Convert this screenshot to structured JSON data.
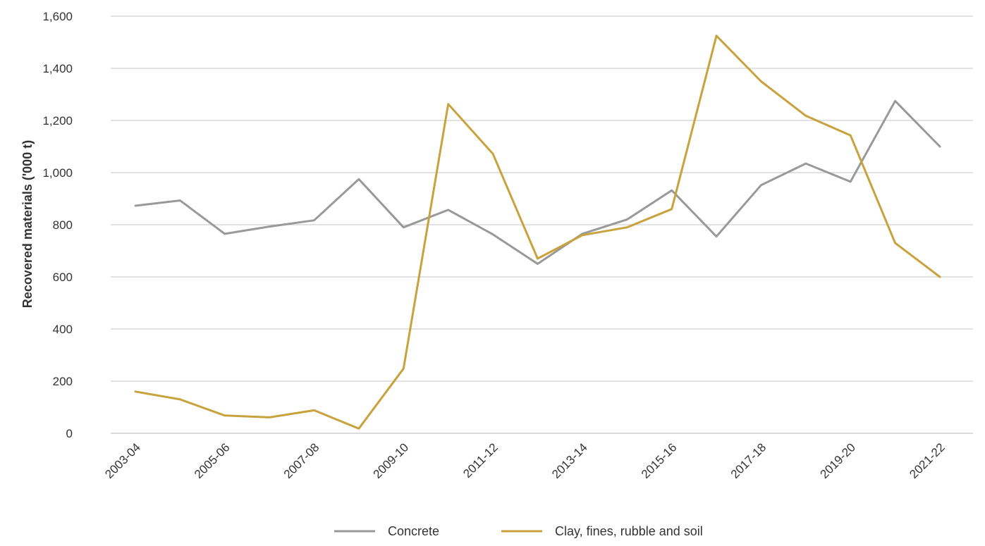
{
  "chart_data": {
    "type": "line",
    "title": "",
    "xlabel": "",
    "ylabel": "Recovered materials ('000 t)",
    "ylim": [
      0,
      1600
    ],
    "yticks": [
      0,
      200,
      400,
      600,
      800,
      1000,
      1200,
      1400,
      1600
    ],
    "ytick_labels": [
      "0",
      "200",
      "400",
      "600",
      "800",
      "1,000",
      "1,200",
      "1,400",
      "1,600"
    ],
    "categories": [
      "2003-04",
      "2004-05",
      "2005-06",
      "2006-07",
      "2007-08",
      "2008-09",
      "2009-10",
      "2010-11",
      "2011-12",
      "2012-13",
      "2013-14",
      "2014-15",
      "2015-16",
      "2016-17",
      "2017-18",
      "2018-19",
      "2019-20",
      "2020-21",
      "2021-22"
    ],
    "xtick_labels": [
      "2003-04",
      "",
      "2005-06",
      "",
      "2007-08",
      "",
      "2009-10",
      "",
      "2011-12",
      "",
      "2013-14",
      "",
      "2015-16",
      "",
      "2017-18",
      "",
      "2019-20",
      "",
      "2021-22"
    ],
    "grid": "horizontal",
    "legend_position": "bottom",
    "series": [
      {
        "name": "Concrete",
        "color": "#999999",
        "values": [
          873,
          893,
          765,
          793,
          817,
          975,
          790,
          857,
          763,
          650,
          765,
          820,
          932,
          755,
          952,
          1035,
          965,
          1275,
          1100
        ]
      },
      {
        "name": "Clay, fines, rubble and soil",
        "color": "#C8A23C",
        "values": [
          160,
          130,
          68,
          61,
          88,
          18,
          248,
          1263,
          1072,
          670,
          760,
          790,
          860,
          1525,
          1350,
          1218,
          1143,
          730,
          600
        ]
      }
    ]
  }
}
